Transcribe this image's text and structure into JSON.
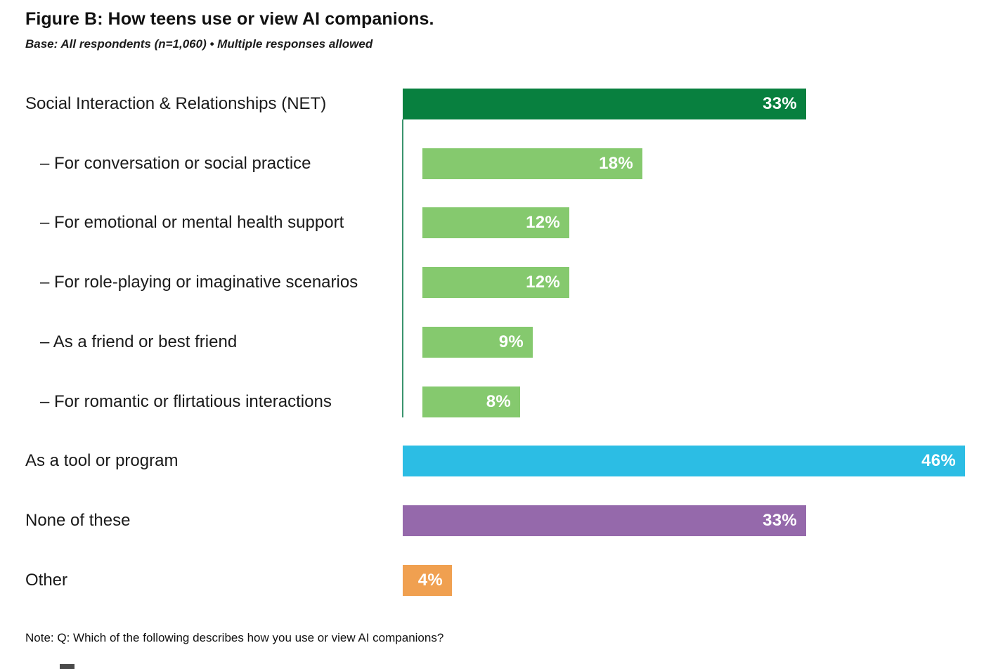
{
  "header": {
    "title": "Figure B: How teens use or view AI companions.",
    "subtitle": "Base: All respondents (n=1,060) • Multiple responses allowed"
  },
  "note": "Note: Q: Which of the following describes how you use or view AI companions?",
  "colors": {
    "dark_green": "#08803f",
    "light_green": "#85c96e",
    "cyan": "#2cbde4",
    "purple": "#9569ab",
    "orange": "#f0a050",
    "connector_line": "#3a946e",
    "label_text": "#1a1a1a",
    "value_text": "#ffffff"
  },
  "chart_data": {
    "type": "bar",
    "orientation": "horizontal",
    "title": "Figure B: How teens use or view AI companions.",
    "subtitle": "Base: All respondents (n=1,060) • Multiple responses allowed",
    "note": "Note: Q: Which of the following describes how you use or view AI companions?",
    "unit": "%",
    "xlim": [
      0,
      46
    ],
    "grid": false,
    "legend": false,
    "value_labels": "inside-end",
    "categories": [
      "Social Interaction & Relationships (NET)",
      "– For conversation or social practice",
      "– For emotional or mental health support",
      "– For role-playing or imaginative scenarios",
      "– As a friend or best friend",
      "– For romantic or flirtatious interactions",
      "As a tool or program",
      "None of these",
      "Other"
    ],
    "values": [
      33,
      18,
      12,
      12,
      9,
      8,
      46,
      33,
      4
    ],
    "rows": [
      {
        "label": "Social Interaction & Relationships (NET)",
        "value": 33,
        "display": "33%",
        "color": "dark_green",
        "indent": false
      },
      {
        "label": "– For conversation or social practice",
        "value": 18,
        "display": "18%",
        "color": "light_green",
        "indent": true
      },
      {
        "label": "– For emotional or mental health support",
        "value": 12,
        "display": "12%",
        "color": "light_green",
        "indent": true
      },
      {
        "label": "– For role-playing or imaginative scenarios",
        "value": 12,
        "display": "12%",
        "color": "light_green",
        "indent": true
      },
      {
        "label": "– As a friend or best friend",
        "value": 9,
        "display": "9%",
        "color": "light_green",
        "indent": true
      },
      {
        "label": "– For romantic or flirtatious interactions",
        "value": 8,
        "display": "8%",
        "color": "light_green",
        "indent": true
      },
      {
        "label": "As a tool or program",
        "value": 46,
        "display": "46%",
        "color": "cyan",
        "indent": false
      },
      {
        "label": "None of these",
        "value": 33,
        "display": "33%",
        "color": "purple",
        "indent": false
      },
      {
        "label": "Other",
        "value": 4,
        "display": "4%",
        "color": "orange",
        "indent": false
      }
    ]
  }
}
